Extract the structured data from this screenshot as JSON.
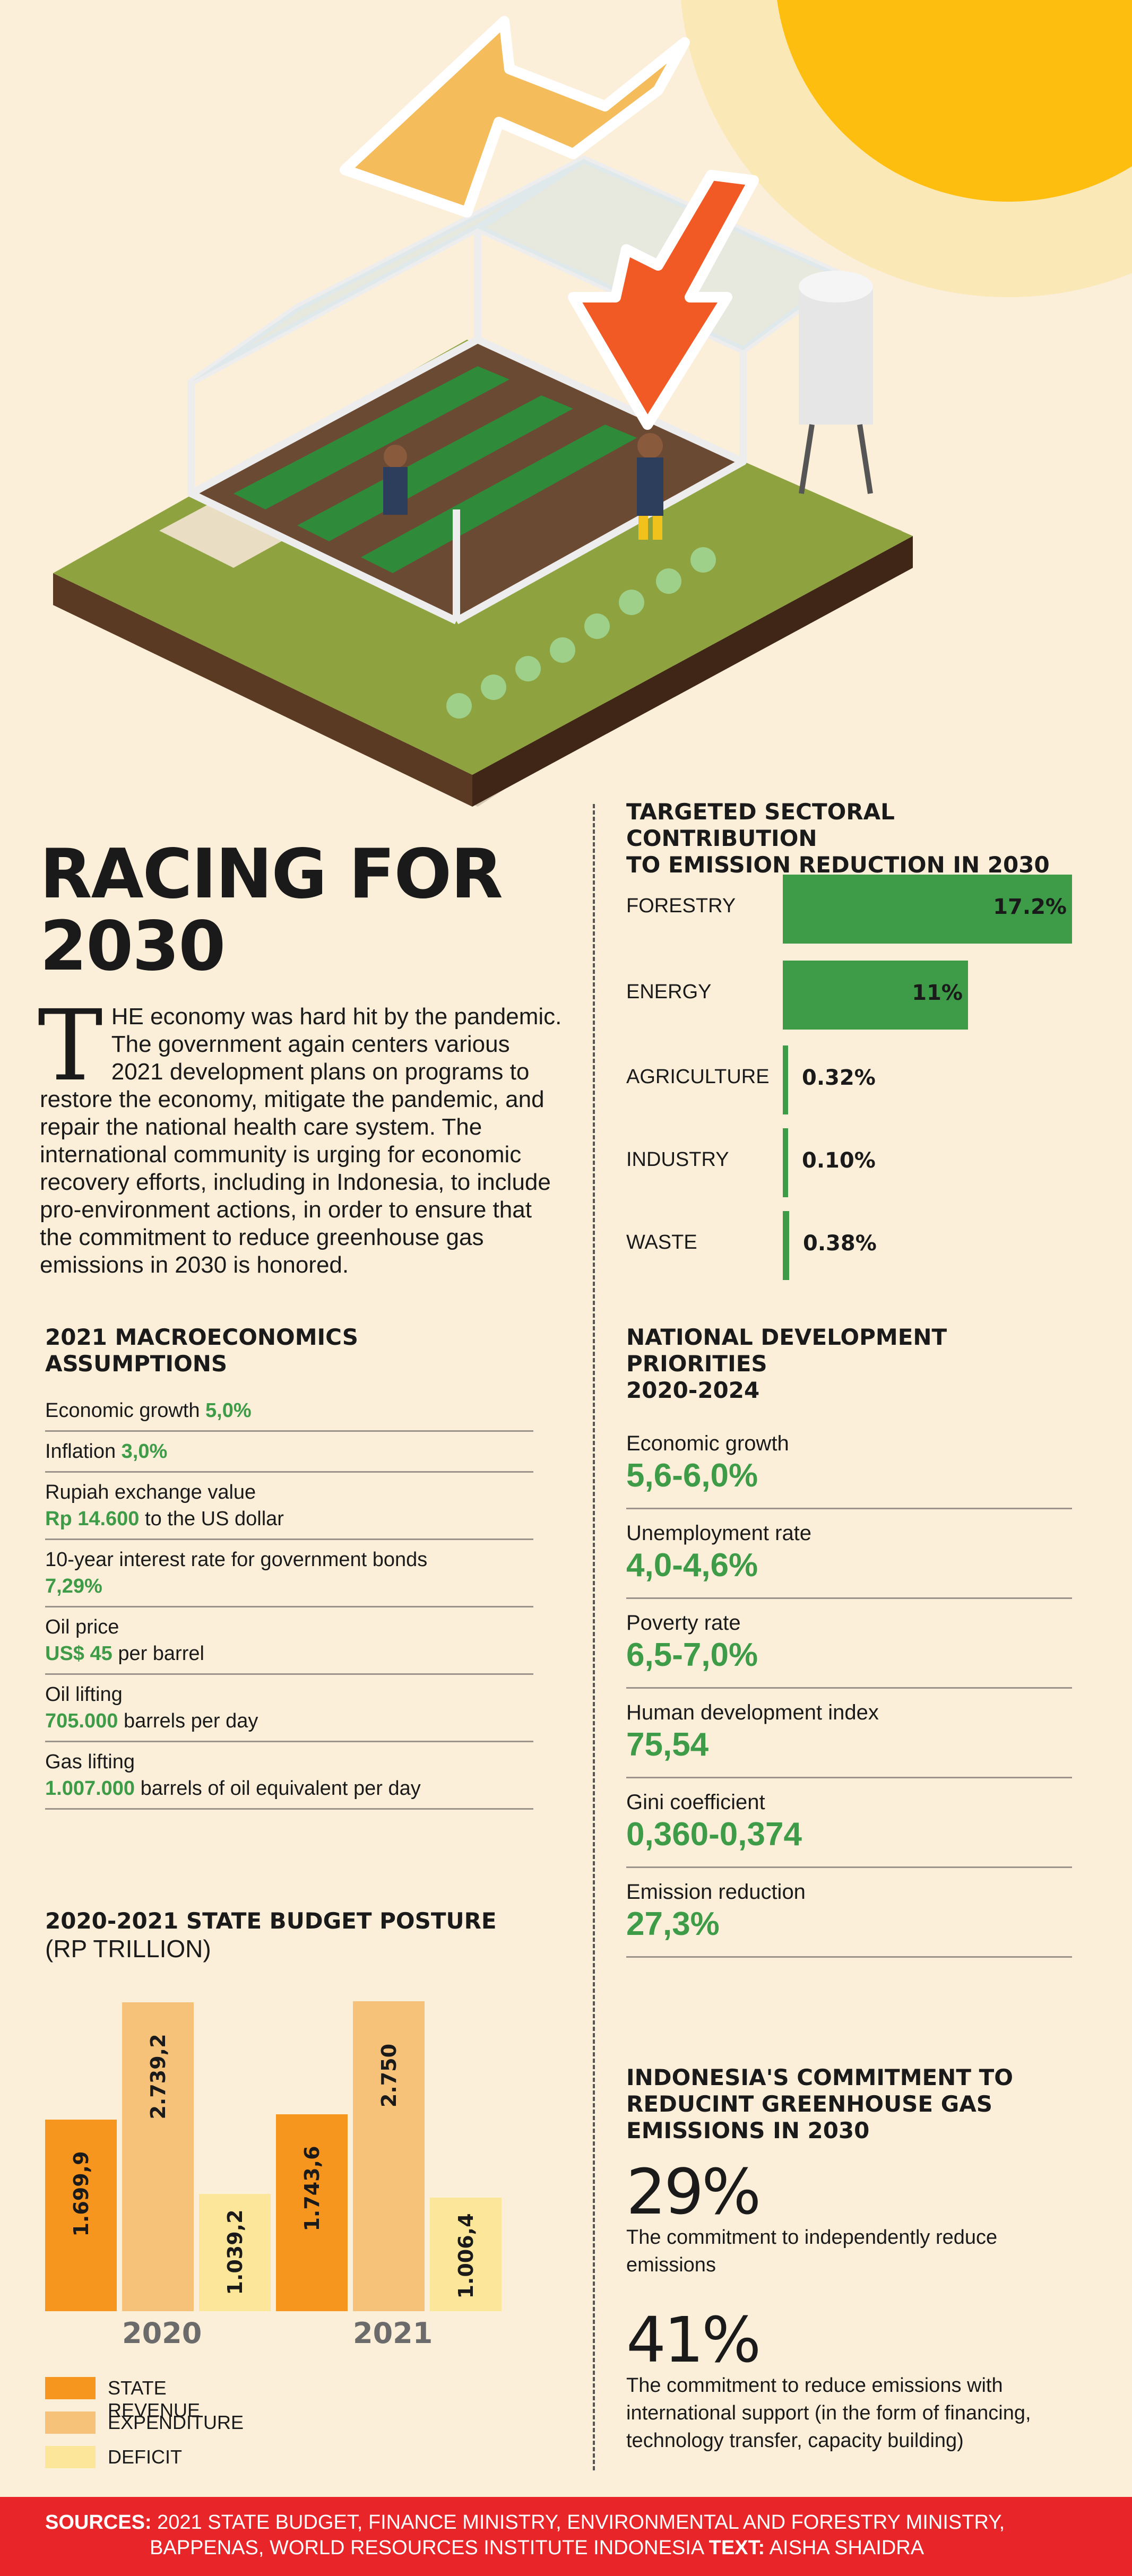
{
  "colors": {
    "background": "#FBEFD9",
    "green": "#3E9B48",
    "state_revenue": "#F7961E",
    "expenditure": "#F6C27A",
    "deficit": "#FCE69A",
    "footer": "#E8262A"
  },
  "hero": {
    "illustration": "isometric greenhouse with farmers, water tower, sun and arrows"
  },
  "title": {
    "line1": "RACING FOR",
    "line2": "2030"
  },
  "intro": {
    "dropcap": "T",
    "text": "HE economy was hard hit by the pandemic. The government again centers various 2021 development plans on programs to restore the economy, mitigate the pandemic, and repair the national health care system. The international community is urging for economic recovery efforts, including in Indonesia, to include pro-environment actions, in order to ensure that the commitment to reduce greenhouse gas emissions in 2030 is honored."
  },
  "macro": {
    "heading": "2021 MACROECONOMICS ASSUMPTIONS",
    "items": [
      {
        "label": "Economic growth",
        "value": "5,0%",
        "suffix": ""
      },
      {
        "label": "Inflation",
        "value": "3,0%",
        "suffix": ""
      },
      {
        "label": "Rupiah exchange value",
        "value": "Rp 14.600",
        "suffix": "to the US dollar"
      },
      {
        "label": "10-year interest rate for government bonds",
        "value": "7,29%",
        "suffix": ""
      },
      {
        "label": "Oil price",
        "value": "US$ 45",
        "suffix": "per barrel"
      },
      {
        "label": "Oil lifting",
        "value": "705.000",
        "suffix": "barrels per day"
      },
      {
        "label": "Gas lifting",
        "value": "1.007.000",
        "suffix": "barrels of oil equivalent per day"
      }
    ]
  },
  "budget": {
    "heading": "2020-2021 STATE BUDGET POSTURE",
    "unit": "(RP TRILLION)",
    "years": [
      "2020",
      "2021"
    ],
    "revenue_labels": [
      "1.699,9",
      "1.743,6"
    ],
    "expenditure_labels": [
      "2.739,2",
      "2.750"
    ],
    "deficit_labels": [
      "1.039,2",
      "1.006,4"
    ],
    "legend": [
      "STATE REVENUE",
      "EXPENDITURE",
      "DEFICIT"
    ]
  },
  "chart_data": [
    {
      "type": "bar",
      "title": "2020-2021 STATE BUDGET POSTURE",
      "subtitle": "(RP TRILLION)",
      "categories": [
        "2020",
        "2021"
      ],
      "series": [
        {
          "name": "STATE REVENUE",
          "values": [
            1699.9,
            1743.6
          ]
        },
        {
          "name": "EXPENDITURE",
          "values": [
            2739.2,
            2750
          ]
        },
        {
          "name": "DEFICIT",
          "values": [
            1039.2,
            1006.4
          ]
        }
      ]
    },
    {
      "type": "bar",
      "title": "TARGETED SECTORAL CONTRIBUTION TO EMISSION REDUCTION IN 2030",
      "categories": [
        "FORESTRY",
        "ENERGY",
        "AGRICULTURE",
        "INDUSTRY",
        "WASTE"
      ],
      "values": [
        17.2,
        11,
        0.32,
        0.1,
        0.38
      ]
    }
  ],
  "sectoral": {
    "heading_line1": "TARGETED SECTORAL CONTRIBUTION",
    "heading_line2": "TO EMISSION REDUCTION IN 2030",
    "categories": [
      "FORESTRY",
      "ENERGY",
      "AGRICULTURE",
      "INDUSTRY",
      "WASTE"
    ],
    "value_labels": [
      "17.2%",
      "11%",
      "0.32%",
      "0.10%",
      "0.38%"
    ]
  },
  "priorities": {
    "heading_line1": "NATIONAL DEVELOPMENT PRIORITIES",
    "heading_line2": "2020-2024",
    "items": [
      {
        "label": "Economic growth",
        "value": "5,6-6,0%"
      },
      {
        "label": "Unemployment rate",
        "value": "4,0-4,6%"
      },
      {
        "label": "Poverty rate",
        "value": "6,5-7,0%"
      },
      {
        "label": "Human development index",
        "value": "75,54"
      },
      {
        "label": "Gini coefficient",
        "value": "0,360-0,374"
      },
      {
        "label": "Emission reduction",
        "value": "27,3%"
      }
    ]
  },
  "commitment": {
    "heading_line1": "INDONESIA'S COMMITMENT TO",
    "heading_line2": "REDUCINT GREENHOUSE GAS",
    "heading_line3": "EMISSIONS IN 2030",
    "items": [
      {
        "pct": "29%",
        "text": "The commitment to independently reduce emissions"
      },
      {
        "pct": "41%",
        "text": "The commitment to reduce emissions with international support (in the form of financing, technology transfer, capacity building)"
      }
    ]
  },
  "footer": {
    "sources_label": "SOURCES:",
    "sources_text_1": "2021 STATE BUDGET, FINANCE MINISTRY, ENVIRONMENTAL AND FORESTRY MINISTRY,",
    "sources_text_2": "BAPPENAS, WORLD RESOURCES INSTITUTE INDONESIA",
    "text_label": "TEXT:",
    "text_author": "AISHA SHAIDRA"
  }
}
